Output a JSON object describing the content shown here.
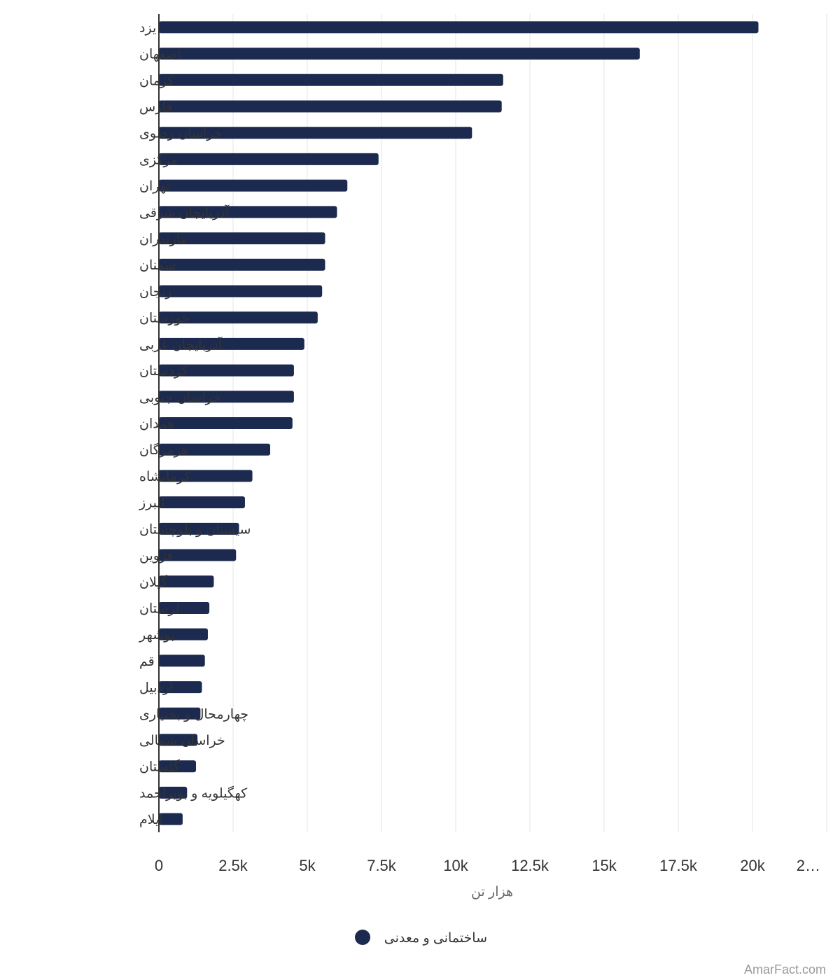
{
  "chart_data": {
    "type": "bar",
    "orientation": "horizontal",
    "categories": [
      "یزد",
      "اصفهان",
      "کرمان",
      "فارس",
      "خراسان رضوی",
      "مرکزی",
      "تهران",
      "آذربایجان شرقی",
      "مازندران",
      "سمنان",
      "زنجان",
      "خوزستان",
      "آذربایجان غربی",
      "کردستان",
      "خراسان جنوبی",
      "همدان",
      "هرمزگان",
      "کرمانشاه",
      "البرز",
      "سیستان و بلوچستان",
      "قزوین",
      "گیلان",
      "لرستان",
      "بوشهر",
      "قم",
      "اردبیل",
      "چهارمحال و بختیاری",
      "خراسان شمالی",
      "گلستان",
      "کهگیلویه و بویراحمد",
      "ایلام"
    ],
    "series": [
      {
        "name": "ساختمانی و معدنی",
        "color": "#1b2a4e",
        "values": [
          20200,
          16200,
          11600,
          11550,
          10550,
          7400,
          6350,
          6000,
          5600,
          5600,
          5500,
          5350,
          4900,
          4550,
          4550,
          4500,
          3750,
          3150,
          2900,
          2700,
          2600,
          1850,
          1700,
          1650,
          1550,
          1450,
          1400,
          1300,
          1250,
          950,
          800
        ]
      }
    ],
    "xlabel": "هزار تن",
    "xlim": [
      0,
      22500
    ],
    "x_ticks": [
      "0",
      "2.5k",
      "5k",
      "7.5k",
      "10k",
      "12.5k",
      "15k",
      "17.5k",
      "20k",
      "2…"
    ],
    "grid": true,
    "legend_position": "bottom-center"
  },
  "credit": "AmarFact.com"
}
